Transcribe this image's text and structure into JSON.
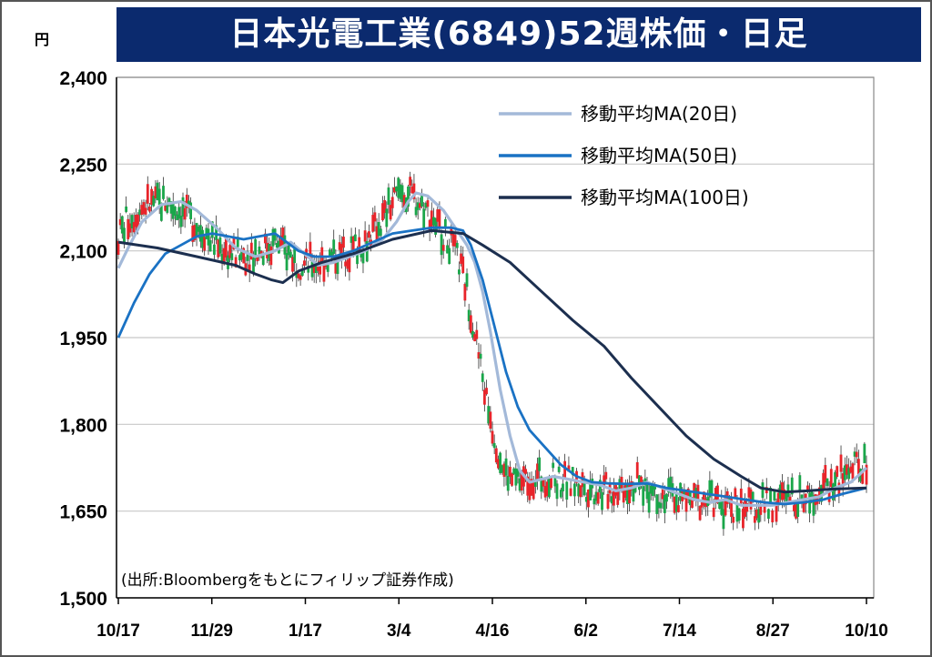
{
  "header": {
    "title": "日本光電工業(6849)52週株価・日足",
    "unit": "円"
  },
  "colors": {
    "title_bg": "#0b2a6e",
    "up": "#e8242a",
    "down": "#1aa64a",
    "ma20": "#a3b9d9",
    "ma50": "#1a72c4",
    "ma100": "#1c2f4f"
  },
  "chart_data": {
    "type": "candlestick",
    "title": "日本光電工業(6849)52週株価・日足",
    "ylabel": "円",
    "ylim": [
      1500,
      2400
    ],
    "yticks": [
      1500,
      1650,
      1800,
      1950,
      2100,
      2250,
      2400
    ],
    "ytick_labels": [
      "1,500",
      "1,650",
      "1,800",
      "1,950",
      "2,100",
      "2,250",
      "2,400"
    ],
    "xtick_labels": [
      "10/17",
      "11/29",
      "1/17",
      "3/4",
      "4/16",
      "6/2",
      "7/14",
      "8/27",
      "10/10"
    ],
    "grid": "horizontal",
    "legend_position": "top-right",
    "source": "(出所:Bloombergをもとにフィリップ証券作成)",
    "series": [
      {
        "name": "移動平均MA(20日)",
        "key": "ma20",
        "points": [
          [
            0,
            2070
          ],
          [
            5,
            2105
          ],
          [
            12,
            2150
          ],
          [
            22,
            2180
          ],
          [
            32,
            2185
          ],
          [
            40,
            2170
          ],
          [
            50,
            2140
          ],
          [
            60,
            2105
          ],
          [
            70,
            2090
          ],
          [
            80,
            2100
          ],
          [
            88,
            2115
          ],
          [
            95,
            2095
          ],
          [
            102,
            2075
          ],
          [
            110,
            2080
          ],
          [
            118,
            2090
          ],
          [
            126,
            2100
          ],
          [
            135,
            2120
          ],
          [
            142,
            2150
          ],
          [
            148,
            2185
          ],
          [
            152,
            2200
          ],
          [
            158,
            2195
          ],
          [
            166,
            2170
          ],
          [
            172,
            2140
          ],
          [
            178,
            2110
          ],
          [
            182,
            2080
          ],
          [
            186,
            2030
          ],
          [
            190,
            1960
          ],
          [
            195,
            1860
          ],
          [
            200,
            1780
          ],
          [
            205,
            1720
          ],
          [
            210,
            1700
          ],
          [
            216,
            1705
          ],
          [
            222,
            1710
          ],
          [
            230,
            1705
          ],
          [
            238,
            1700
          ],
          [
            246,
            1695
          ],
          [
            254,
            1685
          ],
          [
            262,
            1690
          ],
          [
            270,
            1700
          ],
          [
            278,
            1690
          ],
          [
            286,
            1680
          ],
          [
            294,
            1670
          ],
          [
            302,
            1665
          ],
          [
            310,
            1670
          ],
          [
            318,
            1660
          ],
          [
            326,
            1660
          ],
          [
            334,
            1660
          ],
          [
            342,
            1665
          ],
          [
            350,
            1670
          ],
          [
            358,
            1675
          ],
          [
            366,
            1690
          ],
          [
            374,
            1700
          ],
          [
            378,
            1712
          ],
          [
            382,
            1725
          ]
        ]
      },
      {
        "name": "移動平均MA(50日)",
        "key": "ma50",
        "points": [
          [
            0,
            1950
          ],
          [
            8,
            2010
          ],
          [
            16,
            2060
          ],
          [
            24,
            2095
          ],
          [
            32,
            2110
          ],
          [
            40,
            2125
          ],
          [
            48,
            2130
          ],
          [
            56,
            2125
          ],
          [
            64,
            2120
          ],
          [
            72,
            2125
          ],
          [
            80,
            2130
          ],
          [
            86,
            2115
          ],
          [
            92,
            2100
          ],
          [
            100,
            2090
          ],
          [
            110,
            2090
          ],
          [
            120,
            2100
          ],
          [
            130,
            2115
          ],
          [
            140,
            2130
          ],
          [
            150,
            2135
          ],
          [
            160,
            2140
          ],
          [
            170,
            2140
          ],
          [
            176,
            2135
          ],
          [
            180,
            2110
          ],
          [
            186,
            2050
          ],
          [
            192,
            1970
          ],
          [
            198,
            1890
          ],
          [
            204,
            1830
          ],
          [
            210,
            1790
          ],
          [
            218,
            1760
          ],
          [
            226,
            1730
          ],
          [
            234,
            1710
          ],
          [
            242,
            1700
          ],
          [
            250,
            1698
          ],
          [
            260,
            1697
          ],
          [
            270,
            1698
          ],
          [
            280,
            1690
          ],
          [
            290,
            1685
          ],
          [
            300,
            1680
          ],
          [
            310,
            1675
          ],
          [
            320,
            1670
          ],
          [
            330,
            1665
          ],
          [
            340,
            1662
          ],
          [
            350,
            1665
          ],
          [
            360,
            1670
          ],
          [
            370,
            1680
          ],
          [
            382,
            1690
          ]
        ]
      },
      {
        "name": "移動平均MA(100日)",
        "key": "ma100",
        "points": [
          [
            0,
            2115
          ],
          [
            20,
            2105
          ],
          [
            40,
            2090
          ],
          [
            60,
            2075
          ],
          [
            70,
            2060
          ],
          [
            78,
            2050
          ],
          [
            84,
            2045
          ],
          [
            92,
            2065
          ],
          [
            104,
            2080
          ],
          [
            120,
            2095
          ],
          [
            140,
            2120
          ],
          [
            160,
            2135
          ],
          [
            176,
            2130
          ],
          [
            186,
            2110
          ],
          [
            200,
            2080
          ],
          [
            216,
            2030
          ],
          [
            232,
            1980
          ],
          [
            248,
            1935
          ],
          [
            262,
            1880
          ],
          [
            276,
            1830
          ],
          [
            290,
            1780
          ],
          [
            304,
            1740
          ],
          [
            318,
            1710
          ],
          [
            328,
            1690
          ],
          [
            340,
            1683
          ],
          [
            352,
            1685
          ],
          [
            364,
            1688
          ],
          [
            382,
            1690
          ]
        ]
      }
    ]
  }
}
